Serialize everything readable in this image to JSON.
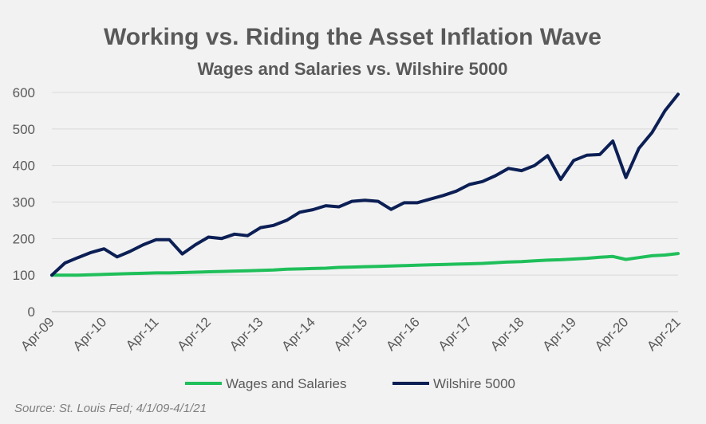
{
  "chart_data": {
    "type": "line",
    "title": "Working vs. Riding the Asset Inflation Wave",
    "subtitle": "Wages and Salaries vs. Wilshire 5000",
    "source": "Source: St. Louis Fed; 4/1/09-4/1/21",
    "ylim": [
      0,
      600
    ],
    "yticks": [
      0,
      100,
      200,
      300,
      400,
      500,
      600
    ],
    "x_tick_labels": [
      "Apr-09",
      "Apr-10",
      "Apr-11",
      "Apr-12",
      "Apr-13",
      "Apr-14",
      "Apr-15",
      "Apr-16",
      "Apr-17",
      "Apr-18",
      "Apr-19",
      "Apr-20",
      "Apr-21"
    ],
    "x_start": 2009.25,
    "x_end": 2021.25,
    "grid": "horizontal",
    "legend_position": "bottom",
    "colors": {
      "wages": "#1fbf5a",
      "wilshire": "#0c1f55",
      "grid": "#d9d9d9"
    },
    "series": [
      {
        "name": "Wages and Salaries",
        "color": "#1fbf5a",
        "x": [
          2009.25,
          2009.5,
          2009.75,
          2010.0,
          2010.25,
          2010.5,
          2010.75,
          2011.0,
          2011.25,
          2011.5,
          2011.75,
          2012.0,
          2012.25,
          2012.5,
          2012.75,
          2013.0,
          2013.25,
          2013.5,
          2013.75,
          2014.0,
          2014.25,
          2014.5,
          2014.75,
          2015.0,
          2015.25,
          2015.5,
          2015.75,
          2016.0,
          2016.25,
          2016.5,
          2016.75,
          2017.0,
          2017.25,
          2017.5,
          2017.75,
          2018.0,
          2018.25,
          2018.5,
          2018.75,
          2019.0,
          2019.25,
          2019.5,
          2019.75,
          2020.0,
          2020.25,
          2020.5,
          2020.75,
          2021.0,
          2021.25
        ],
        "values": [
          100,
          100,
          100,
          101,
          102,
          103,
          104,
          105,
          106,
          106,
          107,
          108,
          109,
          110,
          111,
          112,
          113,
          114,
          116,
          117,
          118,
          119,
          121,
          122,
          123,
          124,
          125,
          126,
          127,
          128,
          129,
          130,
          131,
          132,
          134,
          136,
          137,
          139,
          141,
          142,
          144,
          146,
          149,
          151,
          143,
          148,
          153,
          155,
          159
        ]
      },
      {
        "name": "Wilshire 5000",
        "color": "#0c1f55",
        "x": [
          2009.25,
          2009.5,
          2009.75,
          2010.0,
          2010.25,
          2010.5,
          2010.75,
          2011.0,
          2011.25,
          2011.5,
          2011.75,
          2012.0,
          2012.25,
          2012.5,
          2012.75,
          2013.0,
          2013.25,
          2013.5,
          2013.75,
          2014.0,
          2014.25,
          2014.5,
          2014.75,
          2015.0,
          2015.25,
          2015.5,
          2015.75,
          2016.0,
          2016.25,
          2016.5,
          2016.75,
          2017.0,
          2017.25,
          2017.5,
          2017.75,
          2018.0,
          2018.25,
          2018.5,
          2018.75,
          2019.0,
          2019.25,
          2019.5,
          2019.75,
          2020.0,
          2020.25,
          2020.5,
          2020.75,
          2021.0,
          2021.25
        ],
        "values": [
          100,
          133,
          148,
          162,
          172,
          150,
          165,
          183,
          197,
          197,
          158,
          183,
          204,
          200,
          212,
          208,
          230,
          236,
          250,
          272,
          279,
          290,
          287,
          302,
          305,
          302,
          280,
          298,
          298,
          308,
          318,
          330,
          348,
          356,
          372,
          392,
          386,
          400,
          427,
          362,
          414,
          428,
          430,
          467,
          367,
          447,
          490,
          550,
          595
        ]
      }
    ]
  }
}
